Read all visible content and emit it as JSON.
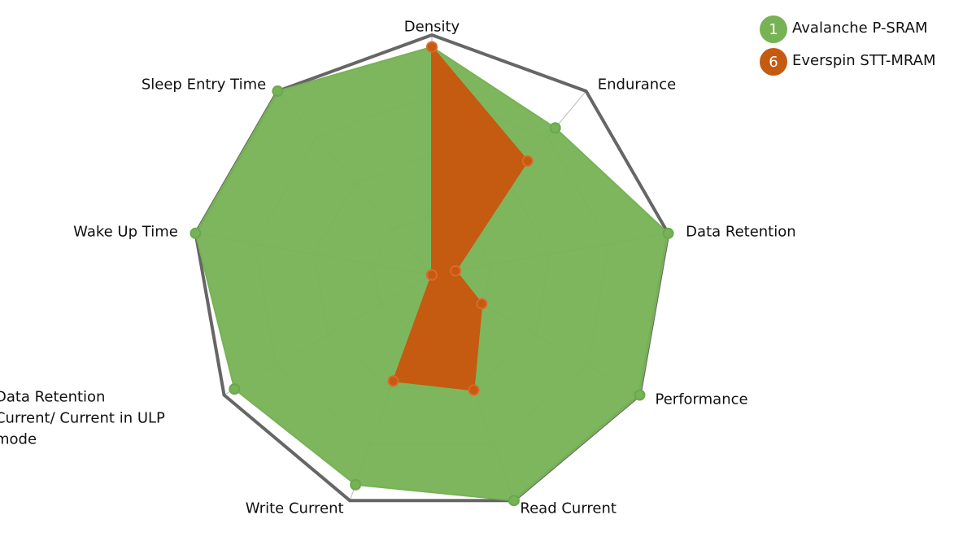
{
  "chart_data": {
    "type": "radar",
    "categories": [
      "Density",
      "Endurance",
      "Data Retention",
      "Performance",
      "Read Current",
      "Write Current",
      "Data Retention Current/ Current in ULP mode",
      "Wake Up Time",
      "Sleep Entry Time"
    ],
    "ylim": [
      0,
      10
    ],
    "yticks": [
      0,
      2.5,
      5,
      7.5,
      10
    ],
    "grid": true,
    "series": [
      {
        "name": "Avalanche P-SRAM",
        "marker": "1",
        "color": "#77b255",
        "values": [
          9.5,
          8,
          10,
          10,
          10,
          9.3,
          9.5,
          10,
          10
        ]
      },
      {
        "name": "Everspin STT-MRAM",
        "marker": "6",
        "color": "#c55a11",
        "values": [
          9.5,
          6.2,
          1,
          2.4,
          5.1,
          4.7,
          0,
          0,
          0
        ]
      }
    ]
  }
}
